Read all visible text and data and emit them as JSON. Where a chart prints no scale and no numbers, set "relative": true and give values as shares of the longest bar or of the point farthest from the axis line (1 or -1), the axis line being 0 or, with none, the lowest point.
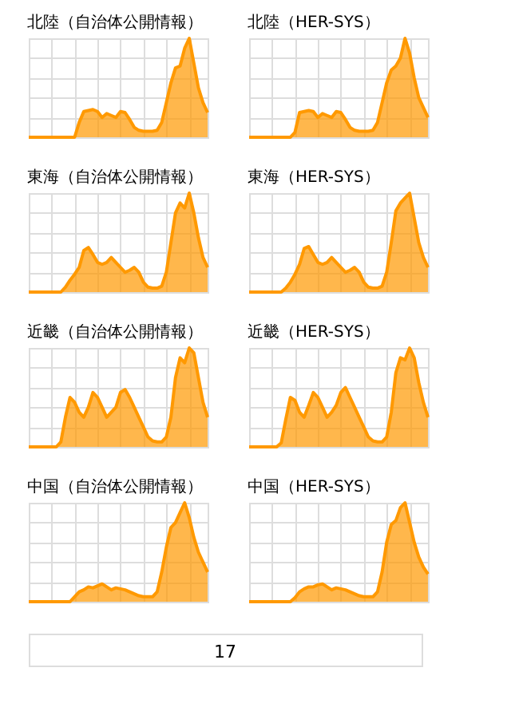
{
  "chart_data": [
    {
      "type": "area",
      "title": "北陸（自治体公開情報）",
      "relative": true,
      "color": "#ff9900",
      "grid": true,
      "categories": [
        null,
        null,
        null,
        null,
        null,
        null,
        null,
        null,
        null,
        null,
        null,
        null,
        null,
        null,
        null,
        null,
        null,
        null,
        null,
        null,
        null,
        null,
        null,
        null,
        null,
        null,
        null,
        null,
        null,
        null,
        null,
        null,
        null,
        null,
        null,
        null,
        null,
        null,
        null,
        null
      ],
      "values": [
        0,
        0,
        0,
        0,
        0,
        0,
        0,
        0,
        0,
        0,
        0,
        0.15,
        0.26,
        0.27,
        0.28,
        0.26,
        0.2,
        0.24,
        0.22,
        0.2,
        0.26,
        0.25,
        0.18,
        0.1,
        0.07,
        0.06,
        0.06,
        0.06,
        0.07,
        0.15,
        0.35,
        0.55,
        0.7,
        0.72,
        0.9,
        1.0,
        0.75,
        0.5,
        0.35,
        0.25
      ]
    },
    {
      "type": "area",
      "title": "北陸（HER-SYS）",
      "relative": true,
      "color": "#ff9900",
      "grid": true,
      "categories": [
        null,
        null,
        null,
        null,
        null,
        null,
        null,
        null,
        null,
        null,
        null,
        null,
        null,
        null,
        null,
        null,
        null,
        null,
        null,
        null,
        null,
        null,
        null,
        null,
        null,
        null,
        null,
        null,
        null,
        null,
        null,
        null,
        null,
        null,
        null,
        null,
        null,
        null,
        null,
        null
      ],
      "values": [
        0,
        0,
        0,
        0,
        0,
        0,
        0,
        0,
        0,
        0,
        0.05,
        0.25,
        0.26,
        0.27,
        0.26,
        0.2,
        0.24,
        0.22,
        0.2,
        0.26,
        0.25,
        0.18,
        0.1,
        0.07,
        0.06,
        0.06,
        0.06,
        0.07,
        0.15,
        0.35,
        0.55,
        0.68,
        0.72,
        0.8,
        1.0,
        0.85,
        0.6,
        0.4,
        0.3,
        0.2
      ]
    },
    {
      "type": "area",
      "title": "東海（自治体公開情報）",
      "relative": true,
      "color": "#ff9900",
      "grid": true,
      "categories": [
        null,
        null,
        null,
        null,
        null,
        null,
        null,
        null,
        null,
        null,
        null,
        null,
        null,
        null,
        null,
        null,
        null,
        null,
        null,
        null,
        null,
        null,
        null,
        null,
        null,
        null,
        null,
        null,
        null,
        null,
        null,
        null,
        null,
        null,
        null,
        null,
        null,
        null,
        null,
        null
      ],
      "values": [
        0,
        0,
        0,
        0,
        0,
        0,
        0,
        0,
        0.05,
        0.12,
        0.18,
        0.25,
        0.42,
        0.45,
        0.38,
        0.3,
        0.28,
        0.3,
        0.35,
        0.3,
        0.25,
        0.2,
        0.22,
        0.25,
        0.2,
        0.1,
        0.05,
        0.04,
        0.04,
        0.06,
        0.2,
        0.5,
        0.8,
        0.9,
        0.85,
        1.0,
        0.8,
        0.55,
        0.35,
        0.25
      ]
    },
    {
      "type": "area",
      "title": "東海（HER-SYS）",
      "relative": true,
      "color": "#ff9900",
      "grid": true,
      "categories": [
        null,
        null,
        null,
        null,
        null,
        null,
        null,
        null,
        null,
        null,
        null,
        null,
        null,
        null,
        null,
        null,
        null,
        null,
        null,
        null,
        null,
        null,
        null,
        null,
        null,
        null,
        null,
        null,
        null,
        null,
        null,
        null,
        null,
        null,
        null,
        null,
        null,
        null,
        null,
        null
      ],
      "values": [
        0,
        0,
        0,
        0,
        0,
        0,
        0,
        0,
        0.04,
        0.1,
        0.18,
        0.28,
        0.44,
        0.46,
        0.38,
        0.3,
        0.28,
        0.3,
        0.35,
        0.3,
        0.25,
        0.2,
        0.22,
        0.25,
        0.2,
        0.1,
        0.05,
        0.04,
        0.04,
        0.06,
        0.2,
        0.5,
        0.82,
        0.9,
        0.95,
        1.0,
        0.75,
        0.5,
        0.35,
        0.25
      ]
    },
    {
      "type": "area",
      "title": "近畿（自治体公開情報）",
      "relative": true,
      "color": "#ff9900",
      "grid": true,
      "categories": [
        null,
        null,
        null,
        null,
        null,
        null,
        null,
        null,
        null,
        null,
        null,
        null,
        null,
        null,
        null,
        null,
        null,
        null,
        null,
        null,
        null,
        null,
        null,
        null,
        null,
        null,
        null,
        null,
        null,
        null,
        null,
        null,
        null,
        null,
        null,
        null,
        null,
        null,
        null,
        null
      ],
      "values": [
        0,
        0,
        0,
        0,
        0,
        0,
        0,
        0.05,
        0.3,
        0.5,
        0.45,
        0.35,
        0.3,
        0.4,
        0.55,
        0.5,
        0.4,
        0.3,
        0.35,
        0.4,
        0.55,
        0.58,
        0.5,
        0.4,
        0.3,
        0.2,
        0.1,
        0.06,
        0.05,
        0.05,
        0.1,
        0.3,
        0.7,
        0.9,
        0.85,
        1.0,
        0.95,
        0.7,
        0.45,
        0.3
      ]
    },
    {
      "type": "area",
      "title": "近畿（HER-SYS）",
      "relative": true,
      "color": "#ff9900",
      "grid": true,
      "categories": [
        null,
        null,
        null,
        null,
        null,
        null,
        null,
        null,
        null,
        null,
        null,
        null,
        null,
        null,
        null,
        null,
        null,
        null,
        null,
        null,
        null,
        null,
        null,
        null,
        null,
        null,
        null,
        null,
        null,
        null,
        null,
        null,
        null,
        null,
        null,
        null,
        null,
        null,
        null,
        null
      ],
      "values": [
        0,
        0,
        0,
        0,
        0,
        0,
        0,
        0.04,
        0.28,
        0.5,
        0.47,
        0.35,
        0.3,
        0.42,
        0.55,
        0.5,
        0.4,
        0.3,
        0.35,
        0.42,
        0.55,
        0.6,
        0.5,
        0.4,
        0.3,
        0.2,
        0.1,
        0.06,
        0.05,
        0.05,
        0.1,
        0.35,
        0.75,
        0.9,
        0.88,
        1.0,
        0.9,
        0.65,
        0.45,
        0.3
      ]
    },
    {
      "type": "area",
      "title": "中国（自治体公開情報）",
      "relative": true,
      "color": "#ff9900",
      "grid": true,
      "categories": [
        null,
        null,
        null,
        null,
        null,
        null,
        null,
        null,
        null,
        null,
        null,
        null,
        null,
        null,
        null,
        null,
        null,
        null,
        null,
        null,
        null,
        null,
        null,
        null,
        null,
        null,
        null,
        null,
        null,
        null,
        null,
        null,
        null,
        null,
        null,
        null,
        null,
        null,
        null,
        null
      ],
      "values": [
        0,
        0,
        0,
        0,
        0,
        0,
        0,
        0,
        0,
        0,
        0.05,
        0.1,
        0.12,
        0.15,
        0.14,
        0.16,
        0.18,
        0.15,
        0.12,
        0.14,
        0.13,
        0.12,
        0.1,
        0.08,
        0.06,
        0.05,
        0.05,
        0.05,
        0.1,
        0.3,
        0.55,
        0.75,
        0.8,
        0.9,
        1.0,
        0.85,
        0.65,
        0.5,
        0.4,
        0.3
      ]
    },
    {
      "type": "area",
      "title": "中国（HER-SYS）",
      "relative": true,
      "color": "#ff9900",
      "grid": true,
      "categories": [
        null,
        null,
        null,
        null,
        null,
        null,
        null,
        null,
        null,
        null,
        null,
        null,
        null,
        null,
        null,
        null,
        null,
        null,
        null,
        null,
        null,
        null,
        null,
        null,
        null,
        null,
        null,
        null,
        null,
        null,
        null,
        null,
        null,
        null,
        null,
        null,
        null,
        null,
        null,
        null
      ],
      "values": [
        0,
        0,
        0,
        0,
        0,
        0,
        0,
        0,
        0,
        0,
        0.04,
        0.1,
        0.13,
        0.15,
        0.15,
        0.17,
        0.18,
        0.15,
        0.12,
        0.14,
        0.13,
        0.12,
        0.1,
        0.08,
        0.06,
        0.05,
        0.05,
        0.05,
        0.1,
        0.3,
        0.6,
        0.78,
        0.82,
        0.95,
        1.0,
        0.8,
        0.6,
        0.45,
        0.35,
        0.28
      ],
      "annotations": [
        "17"
      ]
    }
  ]
}
